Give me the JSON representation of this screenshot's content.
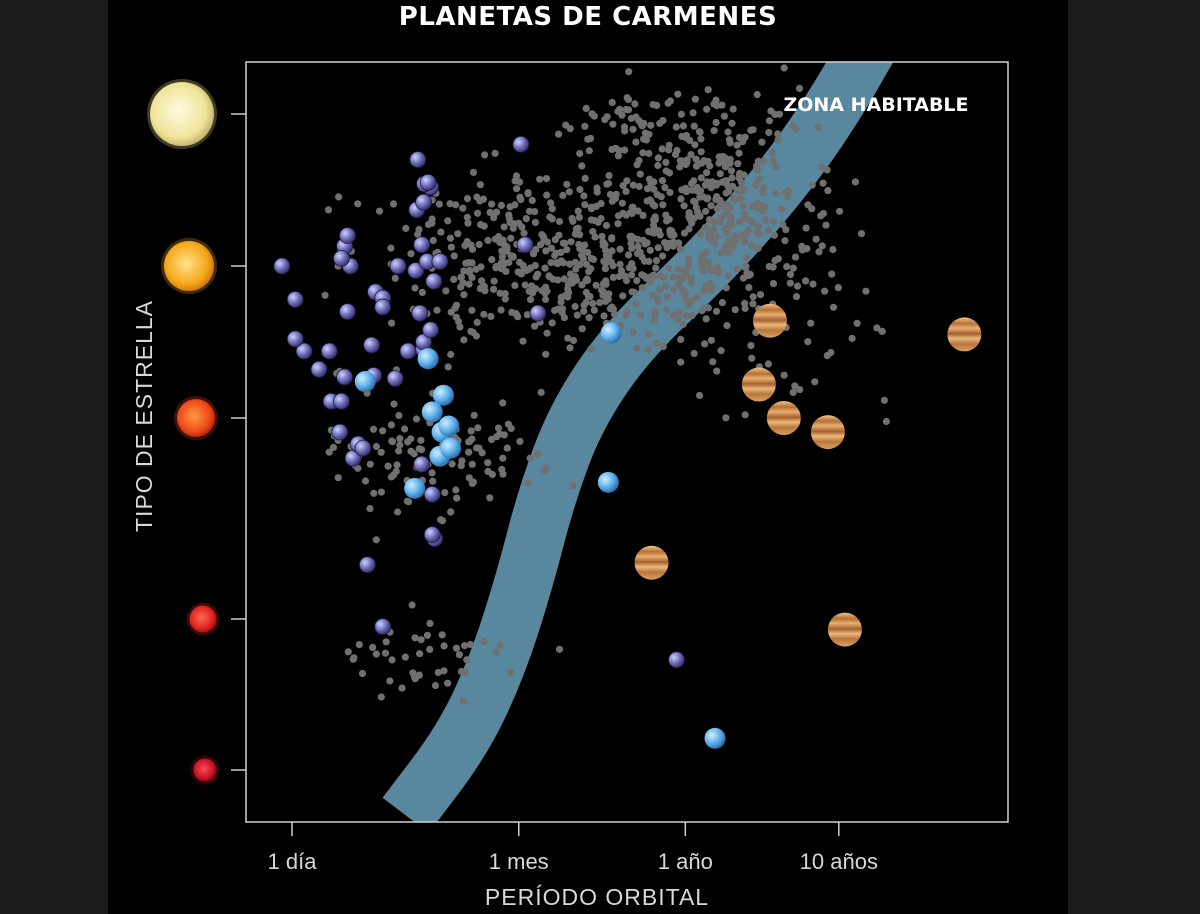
{
  "chart_data": {
    "type": "scatter",
    "title": "PLANETAS DE CARMENES",
    "xlabel": "PERÍODO ORBITAL",
    "ylabel": "TIPO DE ESTRELLA",
    "x_scale": "log",
    "x_unit": "days",
    "x_ticks": [
      {
        "value": 1,
        "label": "1 día"
      },
      {
        "value": 30,
        "label": "1 mes"
      },
      {
        "value": 365,
        "label": "1 año"
      },
      {
        "value": 3650,
        "label": "10 años"
      }
    ],
    "y_categories": [
      "star-type-1",
      "star-type-2",
      "star-type-3",
      "star-type-4",
      "star-type-5"
    ],
    "star_colors": [
      "#f6ec9e",
      "#f7b227",
      "#f04a1c",
      "#e0261e",
      "#c8142a"
    ],
    "annotations": [
      {
        "text": "ZONA HABITABLE",
        "color": "#ffffff"
      }
    ],
    "habitable_zone": {
      "color": "#5e8fa6",
      "center": [
        [
          5.5,
          5.3
        ],
        [
          13,
          4.8
        ],
        [
          22,
          4.3
        ],
        [
          33,
          3.8
        ],
        [
          45,
          3.4
        ],
        [
          70,
          3.0
        ],
        [
          150,
          2.5
        ],
        [
          500,
          2.0
        ],
        [
          1400,
          1.5
        ],
        [
          3200,
          1.0
        ],
        [
          7000,
          0.4
        ]
      ]
    },
    "series": [
      {
        "kind": "rocky",
        "color": "#7a74b8",
        "points": [
          [
            0.86,
            2.0
          ],
          [
            1.05,
            2.22
          ],
          [
            1.2,
            2.56
          ],
          [
            1.05,
            2.48
          ],
          [
            1.5,
            2.68
          ],
          [
            1.8,
            2.89
          ],
          [
            1.75,
            2.56
          ],
          [
            2.05,
            3.07
          ],
          [
            2.4,
            2.0
          ],
          [
            2.2,
            1.87
          ],
          [
            2.1,
            1.95
          ],
          [
            2.3,
            1.8
          ],
          [
            2.2,
            2.73
          ],
          [
            2.1,
            2.89
          ],
          [
            2.3,
            2.3
          ],
          [
            2.5,
            3.2
          ],
          [
            3.3,
            2.52
          ],
          [
            3.5,
            2.17
          ],
          [
            3.9,
            2.21
          ],
          [
            3.9,
            2.27
          ],
          [
            4.7,
            2.74
          ],
          [
            4.9,
            2.0
          ],
          [
            5.7,
            2.56
          ],
          [
            6.4,
            2.03
          ],
          [
            6.8,
            2.31
          ],
          [
            7.0,
            1.86
          ],
          [
            7.2,
            2.55
          ],
          [
            7.6,
            1.97
          ],
          [
            7.2,
            2.5
          ],
          [
            8.0,
            2.42
          ],
          [
            8.4,
            2.1
          ],
          [
            9.2,
            1.97
          ],
          [
            6.5,
            1.63
          ],
          [
            7.2,
            1.58
          ],
          [
            8.0,
            1.48
          ],
          [
            7.3,
            1.46
          ],
          [
            6.6,
            1.3
          ],
          [
            7.7,
            1.45
          ],
          [
            3.4,
            2.72
          ],
          [
            2.7,
            3.13
          ],
          [
            3.9,
            4.05
          ],
          [
            3.1,
            3.73
          ],
          [
            8.5,
            3.6
          ],
          [
            8.2,
            3.58
          ],
          [
            31,
            1.2
          ],
          [
            40,
            2.31
          ],
          [
            33,
            1.86
          ],
          [
            320,
            4.27
          ],
          [
            2.9,
            3.15
          ],
          [
            10.0,
            3.05
          ],
          [
            8.2,
            3.38
          ],
          [
            7.0,
            3.23
          ]
        ],
        "note": "rocky-planet markers; [period_days, star_y] with star_y 1..5 top to bottom mapped to 4.0 at star-type-1"
      },
      {
        "kind": "neptune",
        "color": "#6ab6ee",
        "points": [
          [
            3.0,
            2.76
          ],
          [
            6.3,
            3.35
          ],
          [
            9.7,
            2.85
          ],
          [
            9.5,
            3.07
          ],
          [
            9.2,
            3.19
          ],
          [
            10.5,
            3.04
          ],
          [
            10.8,
            3.15
          ],
          [
            8.2,
            2.96
          ],
          [
            7.7,
            2.61
          ],
          [
            120,
            2.44
          ],
          [
            115,
            3.32
          ],
          [
            570,
            4.79
          ]
        ]
      },
      {
        "kind": "jupiter",
        "color": "#c98a4a",
        "points": [
          [
            1300,
            2.36
          ],
          [
            1100,
            2.78
          ],
          [
            24000,
            2.45
          ],
          [
            1600,
            3.0
          ],
          [
            3100,
            3.07
          ],
          [
            220,
            3.72
          ],
          [
            4000,
            4.07
          ]
        ]
      }
    ]
  }
}
